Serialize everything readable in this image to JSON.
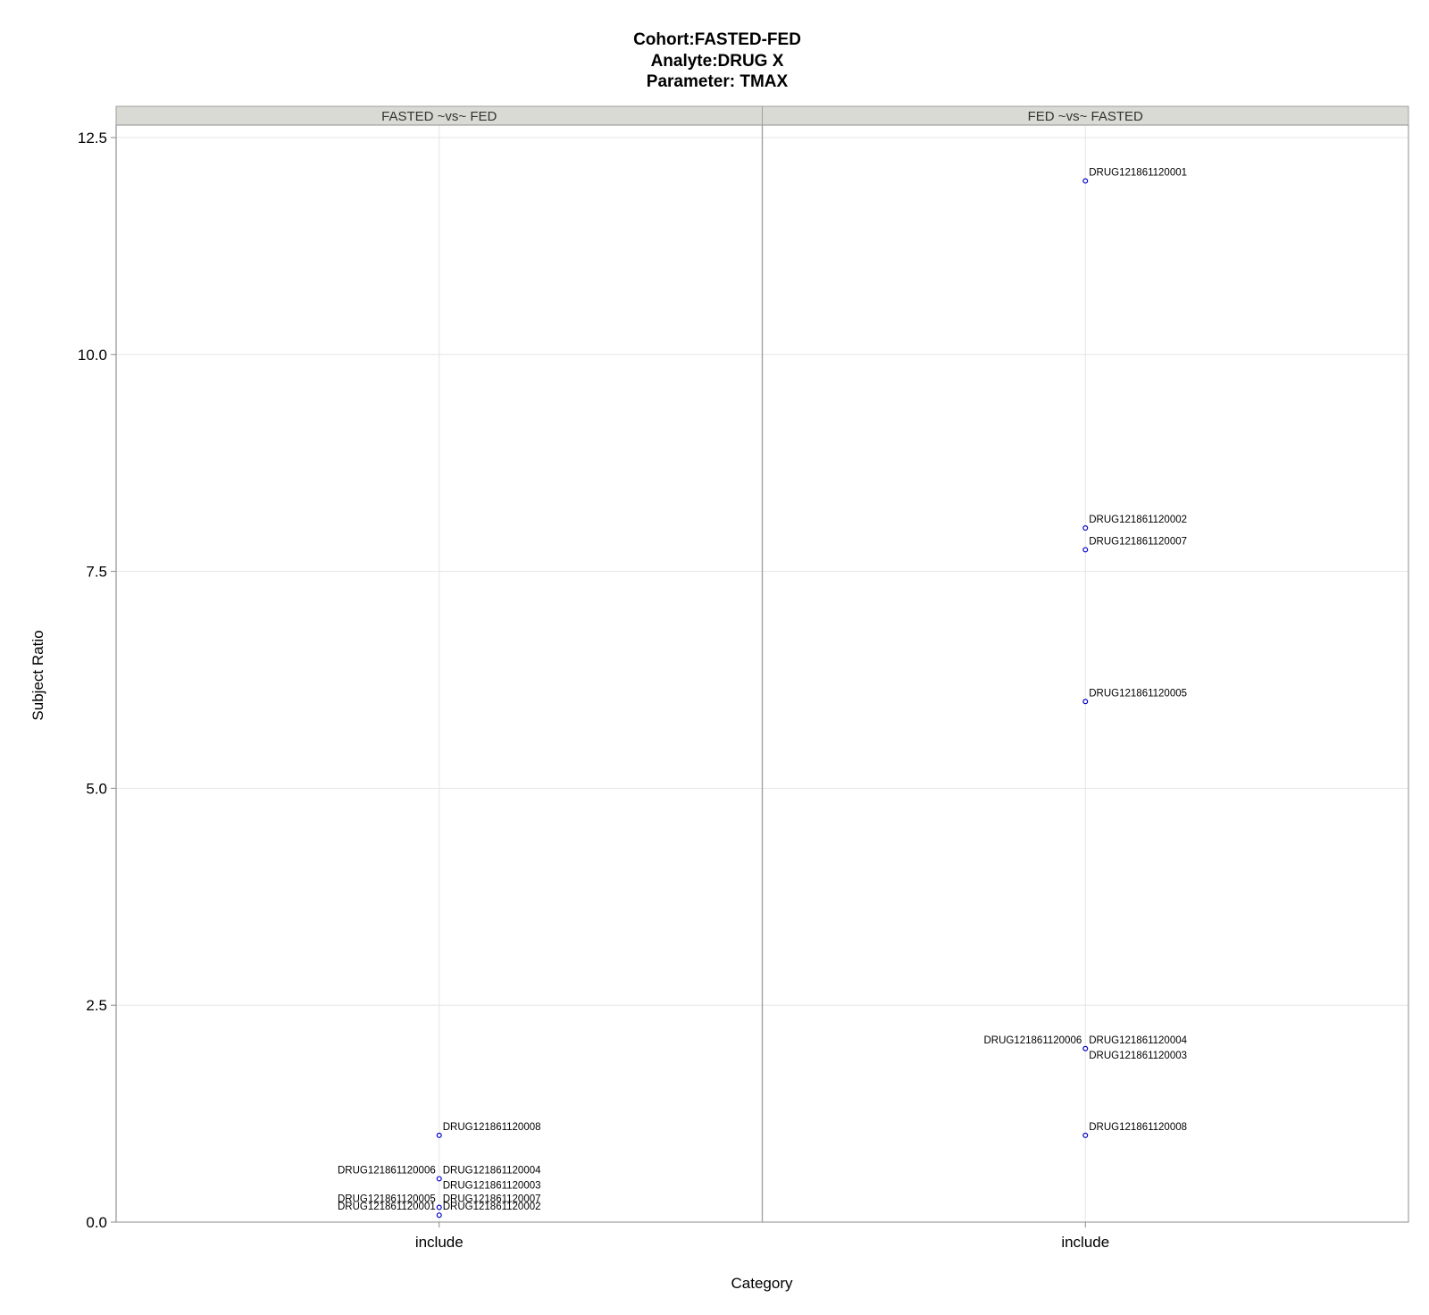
{
  "chart_data": {
    "type": "scatter",
    "title": [
      "Cohort:FASTED-FED",
      "Analyte:DRUG X",
      "Parameter: TMAX"
    ],
    "xlabel": "Category",
    "ylabel": "Subject Ratio",
    "ylim": [
      0,
      12.5
    ],
    "yticks": [
      "0.0",
      "2.5",
      "5.0",
      "7.5",
      "10.0",
      "12.5"
    ],
    "grid": true,
    "marker_color": "#0000cc",
    "panels": [
      {
        "strip": "FASTED ~vs~ FED",
        "category": "include",
        "points": [
          {
            "label": "DRUG121861120008",
            "y": 1.0,
            "side": "right"
          },
          {
            "label": "DRUG121861120004",
            "y": 0.5,
            "side": "right"
          },
          {
            "label": "DRUG121861120006",
            "y": 0.5,
            "side": "left"
          },
          {
            "label": "DRUG121861120003",
            "y": 0.5,
            "side": "right"
          },
          {
            "label": "DRUG121861120005",
            "y": 0.17,
            "side": "left"
          },
          {
            "label": "DRUG121861120007",
            "y": 0.17,
            "side": "right"
          },
          {
            "label": "DRUG121861120001",
            "y": 0.08,
            "side": "left"
          },
          {
            "label": "DRUG121861120002",
            "y": 0.08,
            "side": "right"
          }
        ]
      },
      {
        "strip": "FED ~vs~ FASTED",
        "category": "include",
        "points": [
          {
            "label": "DRUG121861120001",
            "y": 12.0,
            "side": "right"
          },
          {
            "label": "DRUG121861120002",
            "y": 8.0,
            "side": "right"
          },
          {
            "label": "DRUG121861120007",
            "y": 7.75,
            "side": "right"
          },
          {
            "label": "DRUG121861120005",
            "y": 6.0,
            "side": "right"
          },
          {
            "label": "DRUG121861120004",
            "y": 2.0,
            "side": "right"
          },
          {
            "label": "DRUG121861120006",
            "y": 2.0,
            "side": "left"
          },
          {
            "label": "DRUG121861120003",
            "y": 2.0,
            "side": "right"
          },
          {
            "label": "DRUG121861120008",
            "y": 1.0,
            "side": "right"
          }
        ]
      }
    ]
  }
}
